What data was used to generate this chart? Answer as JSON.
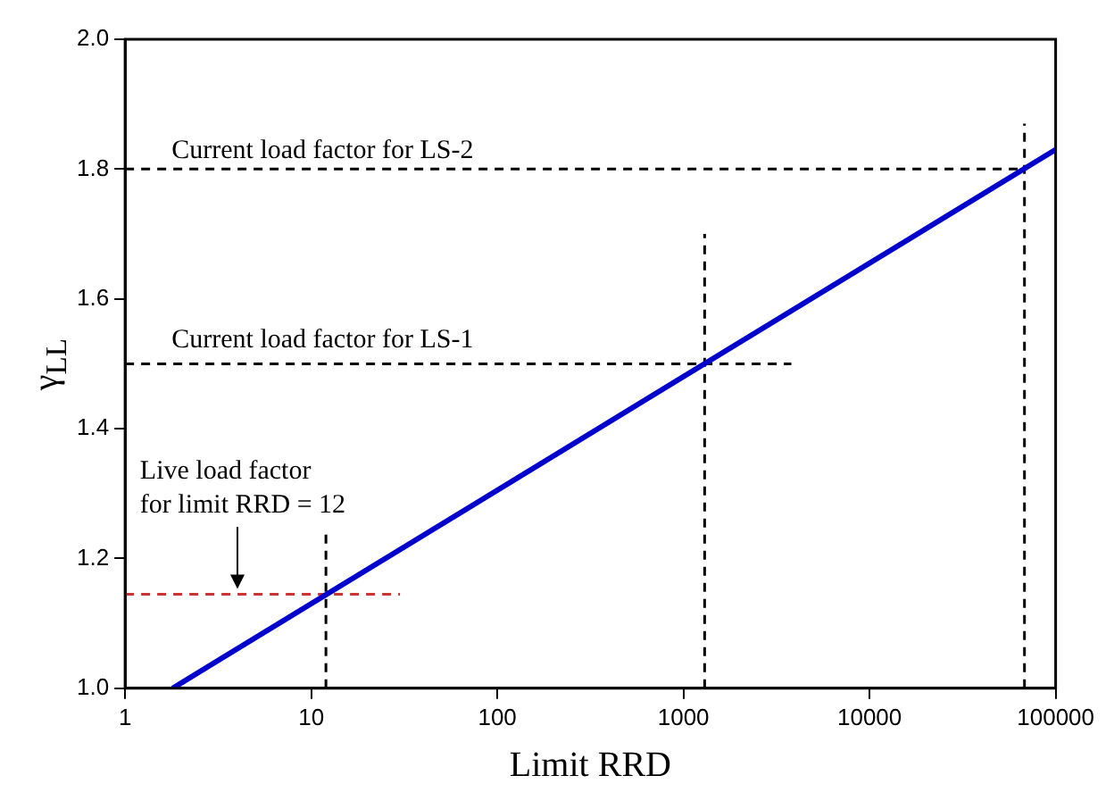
{
  "chart_data": {
    "type": "line",
    "xlabel": "Limit RRD",
    "ylabel": "γ$_{LL}$",
    "log": "x",
    "grid": false,
    "legend": false,
    "marker": "none",
    "xlim": [
      1,
      100000
    ],
    "xticks": [
      1,
      10,
      100,
      1000,
      10000,
      100000
    ],
    "ylim": [
      1.0,
      2.0
    ],
    "yticks": [
      {
        "value": 1.0,
        "label": "1.0"
      },
      {
        "value": 1.2,
        "label": "1.2"
      },
      {
        "value": 1.4,
        "label": "1.4"
      },
      {
        "value": 1.6,
        "label": "1.6"
      },
      {
        "value": 1.8,
        "label": "1.8"
      },
      {
        "value": 2.0,
        "label": "2.0"
      }
    ],
    "series": [
      {
        "color": "#0000cc",
        "line_style": "solid",
        "x": [
          1.8,
          100000
        ],
        "values": [
          1.0,
          1.83
        ]
      },
      {
        "color": "#000000",
        "line_style": "dashed",
        "x": [
          1,
          70000
        ],
        "values": [
          1.8,
          1.8
        ]
      },
      {
        "color": "#000000",
        "line_style": "dashed",
        "x": [
          68000,
          68000
        ],
        "values": [
          1.0,
          1.87
        ]
      },
      {
        "color": "#000000",
        "line_style": "dashed",
        "x": [
          1,
          3800
        ],
        "values": [
          1.5,
          1.5
        ]
      },
      {
        "color": "#000000",
        "line_style": "dashed",
        "x": [
          1300,
          1300
        ],
        "values": [
          1.0,
          1.7
        ]
      },
      {
        "color": "#cc3333",
        "line_style": "dashed",
        "x": [
          1,
          30
        ],
        "values": [
          1.145,
          1.145
        ]
      },
      {
        "color": "#000000",
        "line_style": "dashed",
        "x": [
          12,
          12
        ],
        "values": [
          1.0,
          1.24
        ]
      }
    ],
    "annotations": [
      "Current load factor for LS-2",
      "Current load factor for LS-1",
      "Live load factor\nfor limit RRD = 12"
    ]
  }
}
